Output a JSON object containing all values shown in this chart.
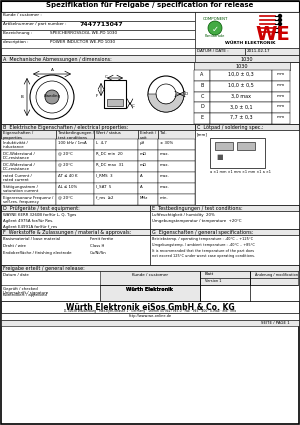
{
  "title": "Spezifikation für Freigabe / specification for release",
  "kunde_label": "Kunde / customer :",
  "artikelnummer_label": "Artikelnummer / part number :",
  "artikelnummer_value": "7447713047",
  "bezeichnung_label": "Bezeichnung :",
  "bezeichnung_value1": "SPEICHERROSSOGL WE-PD 1030",
  "bezeichnung_value2": "POWER INDUCTOR WE-PD 1030",
  "description_label": "description :",
  "datum_label": "DATUM / DATE :",
  "datum_value": "2011-02-17",
  "version_label": "1030",
  "section_a": "A  Mechanische Abmessungen / dimensions:",
  "dim_table": [
    [
      "A",
      "10,0 ± 0,3",
      "mm"
    ],
    [
      "B",
      "10,0 ± 0,5",
      "mm"
    ],
    [
      "C",
      "3,0 max",
      "mm"
    ],
    [
      "D",
      "3,0 ± 0,1",
      "mm"
    ],
    [
      "E",
      "7,7 ± 0,3",
      "mm"
    ]
  ],
  "section_b": "B  Elektrische Eigenschaften / electrical properties:",
  "section_c": "C  Lötpad / soldering spec.:",
  "elec_col_headers": [
    "Eigenschaften / properties",
    "Testbedingungen /\ntest conditions",
    "Wert / status",
    "Einheit / unit",
    "Tol."
  ],
  "elec_rows": [
    [
      "Induktivität /\ninductance",
      "100 kHz / 1mA",
      "L",
      "4,7",
      "µH",
      "± 30%"
    ],
    [
      "DC-Widerstand /\nDC-resistance",
      "@ 20°C",
      "R_DC min",
      "20",
      "mΩ",
      "max."
    ],
    [
      "DC-Widerstand /\nDC-resistance",
      "@ 20°C",
      "R_DC max",
      "31",
      "mΩ",
      "max."
    ],
    [
      "rated Current /\nrated current",
      "ΔT ≤ 40 K",
      "I_RMS",
      "3",
      "A",
      "max."
    ],
    [
      "Sättigungsstrom /\nsaturation current",
      "ΔL ≤ 10%",
      "I_SAT",
      "5",
      "A",
      "max."
    ],
    [
      "Eigenresonanz Frequenz /\nself-res. frequency",
      "@ 20°C",
      "f_res",
      "≥2",
      "MHz",
      "min."
    ]
  ],
  "section_d": "D  Prüfgeräte / test equipment:",
  "section_e": "E  Testbedingungen / test conditions:",
  "wayne_line1": "WAYNE KERR 3260B for/für L, Q, Tges",
  "agilent_line1": "Agilent 4975A for/für Res.",
  "agilent_line2": "Agilent E4991A for/für f_res",
  "humidity_label": "Luftfeuchtigkeit / humidity",
  "humidity_value": "20%",
  "temp_test_label": "Umgebungstemperatur / temperature",
  "temp_test_value": "+20°C",
  "section_f": "F  Werkstoffe & Zulassungen / material & approvals:",
  "section_g": "G  Eigenschaften / general specifications:",
  "basismaterial_label": "Basismaterial / base material",
  "basismaterial_value": "Ferrit ferrite",
  "kern_label": "Draht / wire",
  "kern_value": "Class H",
  "oberflaeche_label": "Endoberfläche / finishing electrode",
  "oberflaeche_value": "Cu/Ni/Sn",
  "betriebstemp_label": "Betriebstemp. / operating temperature : -40°C .. +125°C",
  "umgebungstemp_label": "Umgebungstemp. / ambient temperature : -40°C .. +85°C",
  "temp_note": "It is recommended that the temperature of the part does",
  "temp_note2": "not exceed 125°C under worst case operating conditions.",
  "freigabe_label": "Freigabe erteilt / general release:",
  "kunde_freigabe": "Kunde / customer",
  "datum_date": "Datum / date",
  "unterschrift_label": "Unterschrift / signature",
  "we_label": "Würth Elektronik",
  "geprueft_label": "Geprüft / checked",
  "kontrolliert_label": "Kontrolliert / approved",
  "blatt_label": "Blatt",
  "blatt_value": "Version 1",
  "name_label": "Name",
  "aenderung_label": "Änderung / modification",
  "datum_table_label": "Datum / date",
  "footer_company": "Würth Elektronik eiSos GmbH & Co. KG",
  "footer_address": "D-74638 Waldenburg · Max-Eyth-Strasse 1 · Germany · Telefon (07942) 945-0 · Fax · 945 · 400 · E-Mail · eNl · info",
  "footer_url": "http://www.we-online.de",
  "footer_ref": "SEITE / PAGE 1",
  "bg_color": "#ffffff",
  "border_color": "#000000",
  "header_bg": "#e8e8e8",
  "mid_gray": "#aaaaaa",
  "red_color": "#cc0000"
}
